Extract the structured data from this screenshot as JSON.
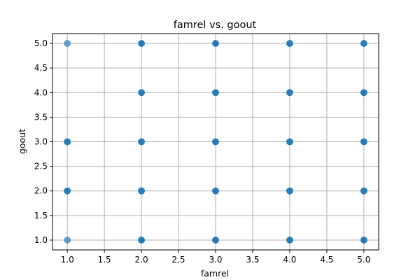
{
  "chart_data": {
    "type": "scatter",
    "title": "famrel vs. goout",
    "xlabel": "famrel",
    "ylabel": "goout",
    "xlim": [
      0.8,
      5.2
    ],
    "ylim": [
      0.8,
      5.2
    ],
    "xticks": [
      1.0,
      1.5,
      2.0,
      2.5,
      3.0,
      3.5,
      4.0,
      4.5,
      5.0
    ],
    "xtick_labels": [
      "1.0",
      "1.5",
      "2.0",
      "2.5",
      "3.0",
      "3.5",
      "4.0",
      "4.5",
      "5.0"
    ],
    "yticks": [
      1.0,
      1.5,
      2.0,
      2.5,
      3.0,
      3.5,
      4.0,
      4.5,
      5.0
    ],
    "ytick_labels": [
      "1.0",
      "1.5",
      "2.0",
      "2.5",
      "3.0",
      "3.5",
      "4.0",
      "4.5",
      "5.0"
    ],
    "grid": true,
    "marker_color": "#1f77b4",
    "points": [
      {
        "x": 1,
        "y": 1,
        "light": true
      },
      {
        "x": 1,
        "y": 2,
        "light": false
      },
      {
        "x": 1,
        "y": 3,
        "light": false
      },
      {
        "x": 1,
        "y": 5,
        "light": true
      },
      {
        "x": 2,
        "y": 1,
        "light": false
      },
      {
        "x": 2,
        "y": 2,
        "light": false
      },
      {
        "x": 2,
        "y": 3,
        "light": false
      },
      {
        "x": 2,
        "y": 4,
        "light": false
      },
      {
        "x": 2,
        "y": 5,
        "light": false
      },
      {
        "x": 3,
        "y": 1,
        "light": false
      },
      {
        "x": 3,
        "y": 2,
        "light": false
      },
      {
        "x": 3,
        "y": 3,
        "light": false
      },
      {
        "x": 3,
        "y": 4,
        "light": false
      },
      {
        "x": 3,
        "y": 5,
        "light": false
      },
      {
        "x": 4,
        "y": 1,
        "light": false
      },
      {
        "x": 4,
        "y": 2,
        "light": false
      },
      {
        "x": 4,
        "y": 3,
        "light": false
      },
      {
        "x": 4,
        "y": 4,
        "light": false
      },
      {
        "x": 4,
        "y": 5,
        "light": false
      },
      {
        "x": 5,
        "y": 1,
        "light": false
      },
      {
        "x": 5,
        "y": 2,
        "light": false
      },
      {
        "x": 5,
        "y": 3,
        "light": false
      },
      {
        "x": 5,
        "y": 4,
        "light": false
      },
      {
        "x": 5,
        "y": 5,
        "light": false
      }
    ]
  }
}
